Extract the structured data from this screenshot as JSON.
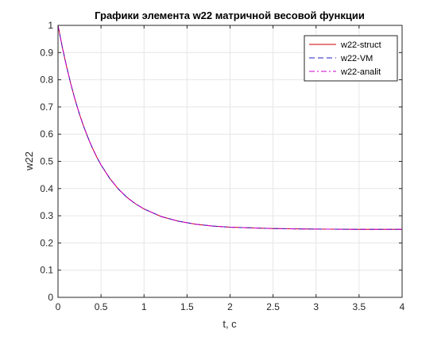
{
  "chart_data": {
    "type": "line",
    "title": "Графики элемента w22 матричной весовой функции",
    "xlabel": "t, c",
    "ylabel": "w22",
    "xlim": [
      0,
      4
    ],
    "ylim": [
      0,
      1
    ],
    "grid": true,
    "legend_position": "top-right",
    "x_ticks": [
      "0",
      "0.5",
      "1",
      "1.5",
      "2",
      "2.5",
      "3",
      "3.5",
      "4"
    ],
    "y_ticks": [
      "0",
      "0.1",
      "0.2",
      "0.3",
      "0.4",
      "0.5",
      "0.6",
      "0.7",
      "0.8",
      "0.9",
      "1"
    ],
    "x": [
      0,
      0.05,
      0.1,
      0.15,
      0.2,
      0.25,
      0.3,
      0.35,
      0.4,
      0.45,
      0.5,
      0.6,
      0.7,
      0.8,
      0.9,
      1.0,
      1.2,
      1.4,
      1.6,
      1.8,
      2.0,
      2.5,
      3.0,
      3.5,
      4.0
    ],
    "series": [
      {
        "name": "w22-struct",
        "color": "#cc0000",
        "dash": "solid",
        "values": [
          1.0,
          0.92,
          0.848,
          0.783,
          0.725,
          0.673,
          0.627,
          0.586,
          0.549,
          0.516,
          0.487,
          0.438,
          0.399,
          0.368,
          0.344,
          0.325,
          0.297,
          0.28,
          0.269,
          0.262,
          0.258,
          0.253,
          0.251,
          0.25,
          0.25
        ]
      },
      {
        "name": "w22-VM",
        "color": "#1f1fbf",
        "dash": "dashed",
        "values": [
          1.0,
          0.92,
          0.848,
          0.783,
          0.725,
          0.673,
          0.627,
          0.586,
          0.549,
          0.516,
          0.487,
          0.438,
          0.399,
          0.368,
          0.344,
          0.325,
          0.297,
          0.28,
          0.269,
          0.262,
          0.258,
          0.253,
          0.251,
          0.25,
          0.25
        ]
      },
      {
        "name": "w22-analit",
        "color": "#cc00cc",
        "dash": "dashdot",
        "values": [
          1.0,
          0.92,
          0.848,
          0.783,
          0.725,
          0.673,
          0.627,
          0.586,
          0.549,
          0.516,
          0.487,
          0.438,
          0.399,
          0.368,
          0.344,
          0.325,
          0.297,
          0.28,
          0.269,
          0.262,
          0.258,
          0.253,
          0.251,
          0.25,
          0.25
        ]
      }
    ]
  }
}
